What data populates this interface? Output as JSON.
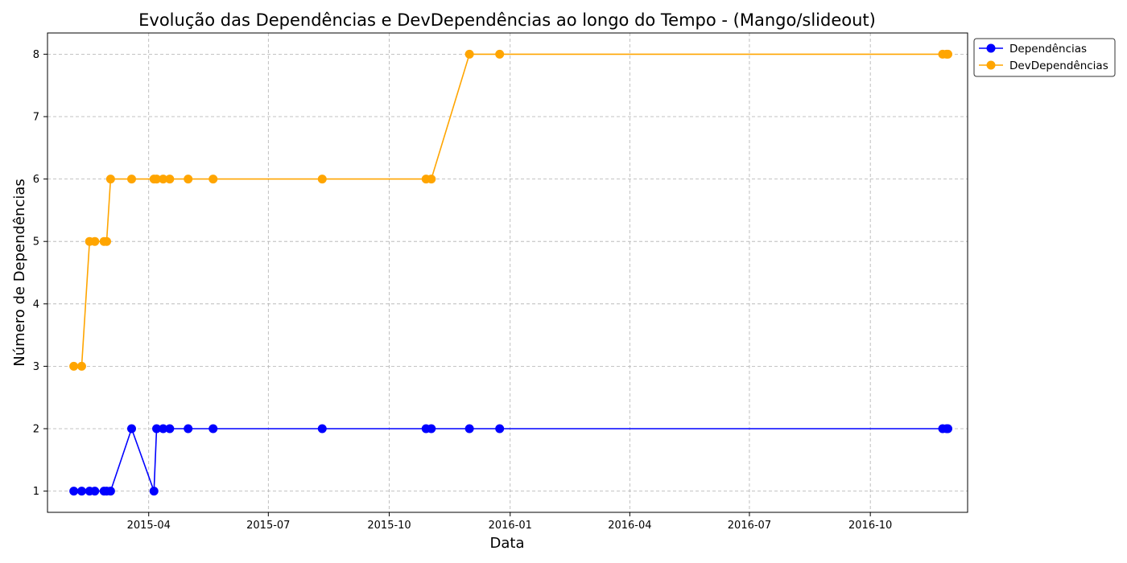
{
  "chart_data": {
    "type": "line",
    "title": "Evolução das Dependências e DevDependências ao longo do Tempo - (Mango/slideout)",
    "xlabel": "Data",
    "ylabel": "Número de Dependências",
    "xlim": [
      "2015-01-14",
      "2016-12-14"
    ],
    "ylim": [
      0.66,
      8.34
    ],
    "x_ticks": [
      {
        "date": "2015-04-01",
        "label": "2015-04"
      },
      {
        "date": "2015-07-01",
        "label": "2015-07"
      },
      {
        "date": "2015-10-01",
        "label": "2015-10"
      },
      {
        "date": "2016-01-01",
        "label": "2016-01"
      },
      {
        "date": "2016-04-01",
        "label": "2016-04"
      },
      {
        "date": "2016-07-01",
        "label": "2016-07"
      },
      {
        "date": "2016-10-01",
        "label": "2016-10"
      }
    ],
    "y_ticks": [
      1,
      2,
      3,
      4,
      5,
      6,
      7,
      8
    ],
    "grid": true,
    "legend_position": "outside-top-right",
    "x": [
      "2015-02-03",
      "2015-02-09",
      "2015-02-15",
      "2015-02-19",
      "2015-02-26",
      "2015-02-28",
      "2015-03-03",
      "2015-03-19",
      "2015-04-05",
      "2015-04-07",
      "2015-04-12",
      "2015-04-17",
      "2015-05-01",
      "2015-05-20",
      "2015-08-11",
      "2015-10-29",
      "2015-11-02",
      "2015-12-01",
      "2015-12-24",
      "2016-11-25",
      "2016-11-28",
      "2016-11-29"
    ],
    "series": [
      {
        "name": "Dependências",
        "color": "#0000ff",
        "values": [
          1,
          1,
          1,
          1,
          1,
          1,
          1,
          2,
          1,
          2,
          2,
          2,
          2,
          2,
          2,
          2,
          2,
          2,
          2,
          2,
          2,
          2
        ]
      },
      {
        "name": "DevDependências",
        "color": "#ffa500",
        "values": [
          3,
          3,
          5,
          5,
          5,
          5,
          6,
          6,
          6,
          6,
          6,
          6,
          6,
          6,
          6,
          6,
          6,
          8,
          8,
          8,
          8,
          8
        ]
      }
    ]
  }
}
